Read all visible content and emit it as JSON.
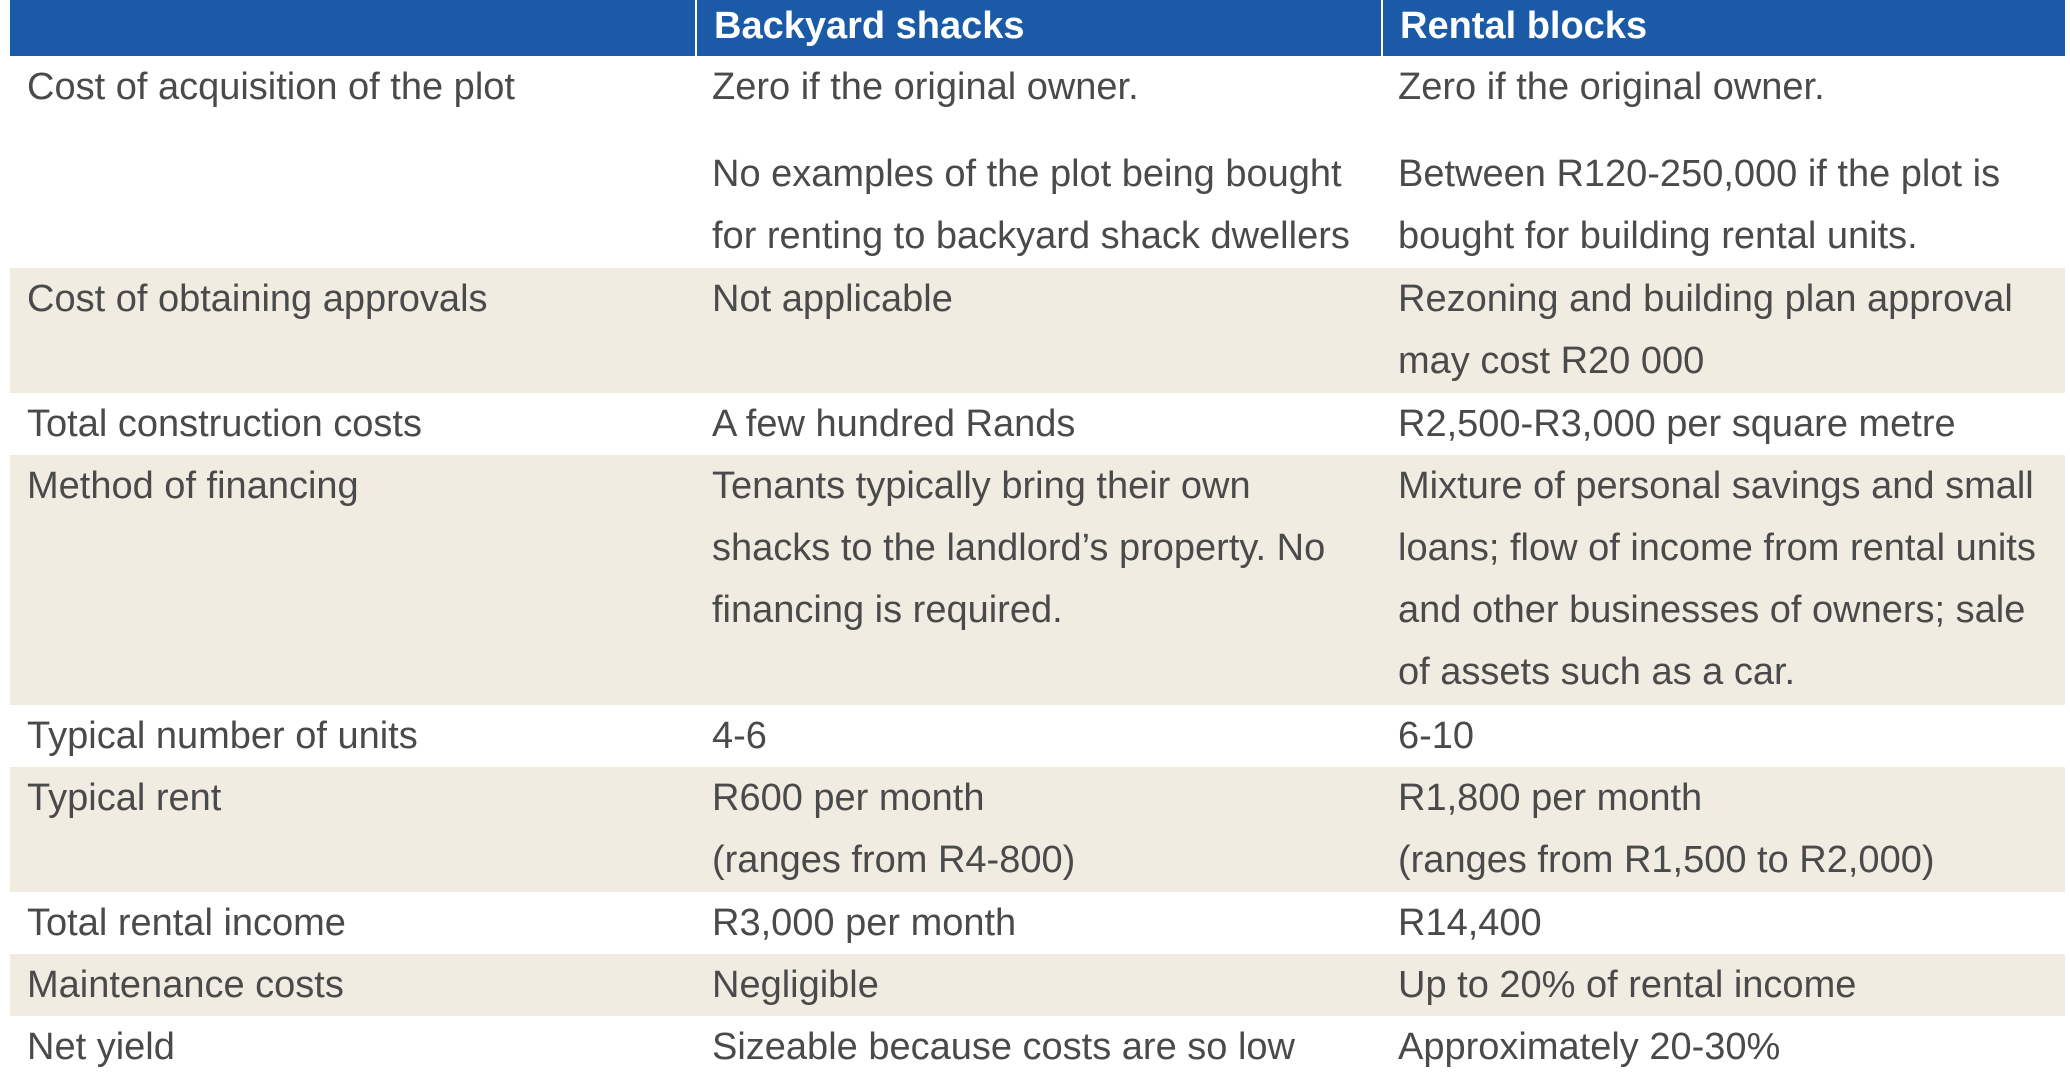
{
  "header": {
    "col1": "",
    "col2": "Backyard shacks",
    "col3": "Rental blocks"
  },
  "rows": [
    {
      "label": "Cost of acquisition of the plot",
      "backyard": [
        "Zero if the original owner."
      ],
      "backyard_extra": [
        "No examples of the plot being bought",
        "for renting to backyard shack dwellers"
      ],
      "rental": [
        "Zero if the original owner."
      ],
      "rental_extra": [
        "Between R120-250,000 if the plot is",
        "bought for building rental units."
      ]
    },
    {
      "label": "Cost of obtaining approvals",
      "backyard": [
        "Not applicable"
      ],
      "rental": [
        "Rezoning and building plan approval",
        "may cost R20 000"
      ]
    },
    {
      "label": "Total construction costs",
      "backyard": [
        "A few hundred Rands"
      ],
      "rental": [
        "R2,500-R3,000 per square metre"
      ]
    },
    {
      "label": "Method of financing",
      "backyard": [
        "Tenants typically bring their own",
        "shacks to the landlord’s property. No",
        "financing is required."
      ],
      "rental": [
        "Mixture of personal savings and small",
        "loans; flow of income from rental units",
        "and other businesses of owners; sale",
        "of assets such as a car."
      ]
    },
    {
      "label": "Typical number of units",
      "backyard": [
        "4-6"
      ],
      "rental": [
        "6-10"
      ]
    },
    {
      "label": "Typical rent",
      "backyard": [
        "R600 per month",
        "(ranges from R4-800)"
      ],
      "rental": [
        "R1,800 per month",
        "(ranges from R1,500 to R2,000)"
      ]
    },
    {
      "label": "Total rental income",
      "backyard": [
        "R3,000 per month"
      ],
      "rental": [
        "R14,400"
      ]
    },
    {
      "label": "Maintenance costs",
      "backyard": [
        "Negligible"
      ],
      "rental": [
        "Up to 20% of rental income"
      ]
    },
    {
      "label": "Net yield",
      "backyard": [
        "Sizeable because costs are so low"
      ],
      "rental": [
        "Approximately 20-30%"
      ]
    }
  ]
}
